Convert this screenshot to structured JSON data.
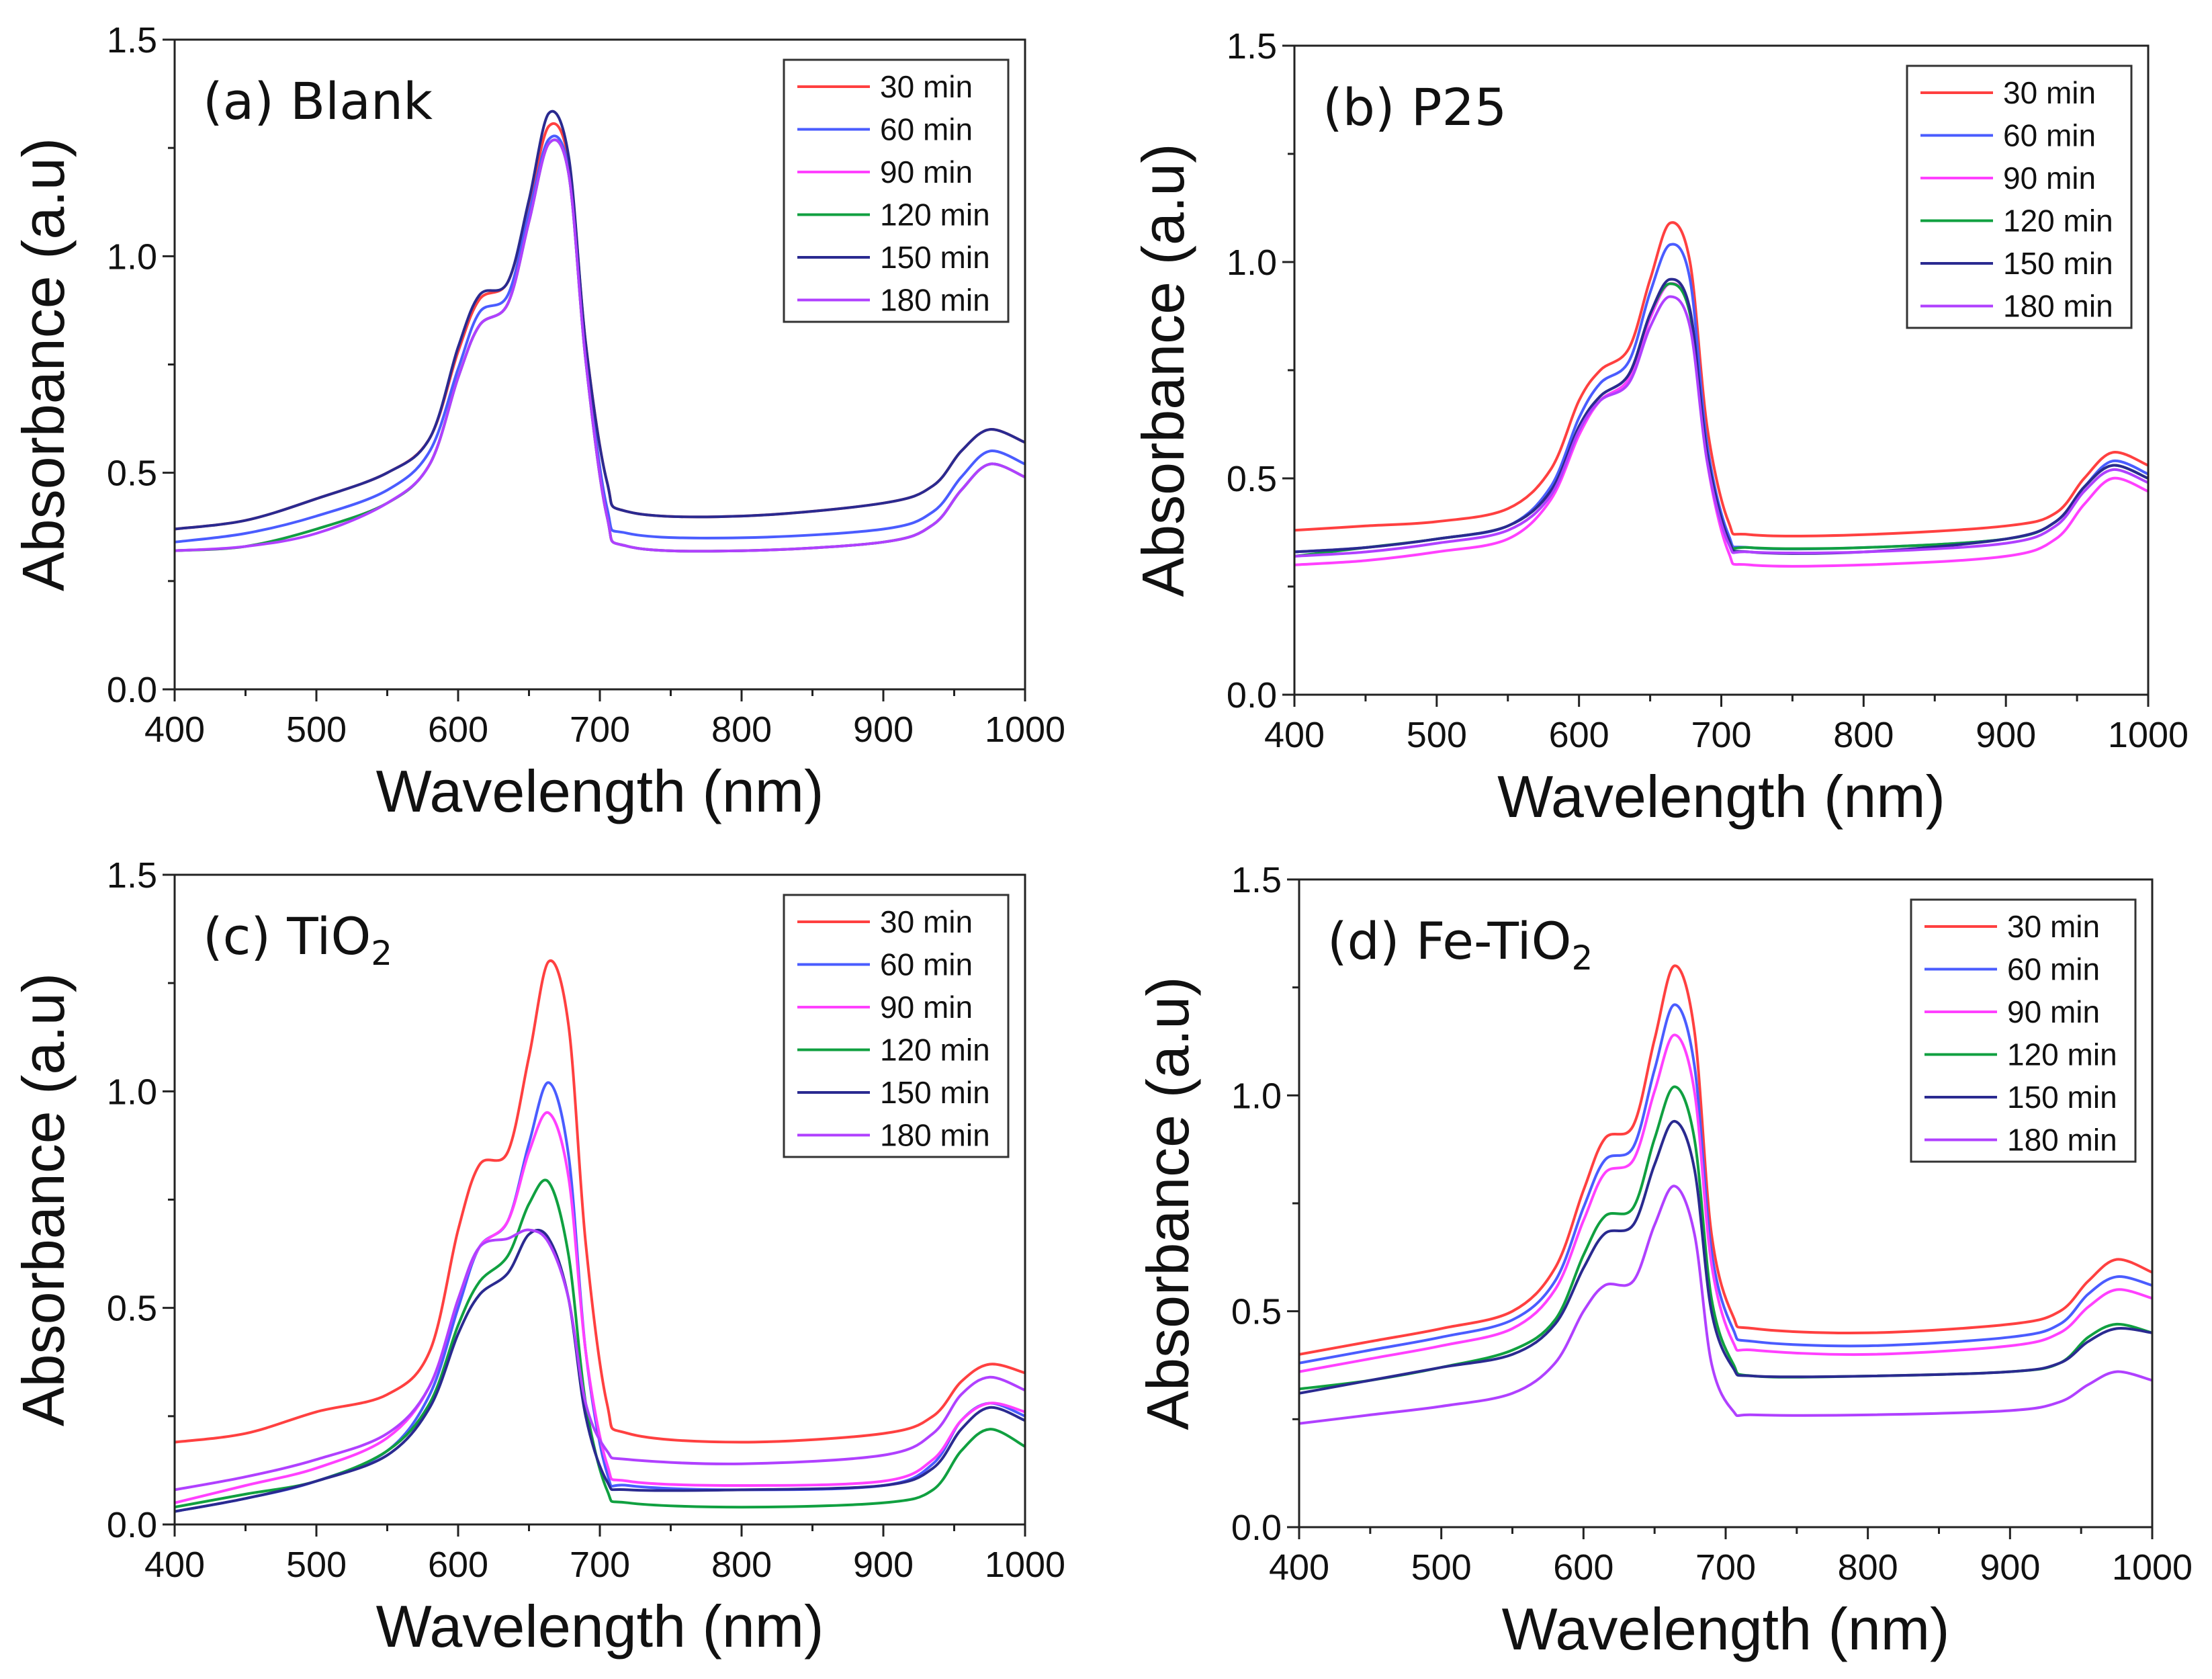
{
  "chart_data": [
    {
      "type": "line",
      "title": "(a) Blank",
      "title_main": "(a) Blank",
      "title_sub": "",
      "xlabel": "Wavelength (nm)",
      "ylabel": "Absorbance (a.u)",
      "xlim": [
        400,
        1000
      ],
      "ylim": [
        0,
        1.5
      ],
      "xticks": [
        "400",
        "500",
        "600",
        "700",
        "800",
        "900",
        "1000"
      ],
      "yticks": [
        "0.0",
        "0.5",
        "1.0",
        "1.5"
      ],
      "legend_position": "top-right",
      "grid": false,
      "x": [
        400,
        450,
        500,
        550,
        580,
        600,
        615,
        635,
        650,
        664,
        678,
        690,
        705,
        720,
        800,
        900,
        935,
        955,
        975,
        1000
      ],
      "series": [
        {
          "name": "30 min",
          "color": "#ff4040",
          "values": [
            0.37,
            0.39,
            0.44,
            0.5,
            0.58,
            0.78,
            0.9,
            0.94,
            1.12,
            1.3,
            1.22,
            0.8,
            0.48,
            0.41,
            0.4,
            0.43,
            0.47,
            0.55,
            0.6,
            0.57
          ]
        },
        {
          "name": "60 min",
          "color": "#4a5cff",
          "values": [
            0.34,
            0.36,
            0.4,
            0.46,
            0.55,
            0.74,
            0.87,
            0.91,
            1.1,
            1.27,
            1.2,
            0.78,
            0.42,
            0.36,
            0.35,
            0.37,
            0.41,
            0.49,
            0.55,
            0.52
          ]
        },
        {
          "name": "90 min",
          "color": "#ff40ff",
          "values": [
            0.32,
            0.33,
            0.37,
            0.43,
            0.52,
            0.72,
            0.84,
            0.89,
            1.08,
            1.26,
            1.19,
            0.76,
            0.4,
            0.33,
            0.32,
            0.34,
            0.38,
            0.46,
            0.52,
            0.49
          ]
        },
        {
          "name": "120 min",
          "color": "#10a040",
          "values": [
            0.32,
            0.33,
            0.37,
            0.43,
            0.52,
            0.72,
            0.84,
            0.89,
            1.08,
            1.26,
            1.19,
            0.76,
            0.4,
            0.33,
            0.32,
            0.34,
            0.38,
            0.46,
            0.52,
            0.49
          ]
        },
        {
          "name": "150 min",
          "color": "#2a2a90",
          "values": [
            0.37,
            0.39,
            0.44,
            0.5,
            0.58,
            0.79,
            0.91,
            0.94,
            1.13,
            1.33,
            1.23,
            0.8,
            0.48,
            0.41,
            0.4,
            0.43,
            0.47,
            0.55,
            0.6,
            0.57
          ]
        },
        {
          "name": "180 min",
          "color": "#b040ff",
          "values": [
            0.32,
            0.33,
            0.36,
            0.43,
            0.52,
            0.72,
            0.84,
            0.89,
            1.08,
            1.26,
            1.19,
            0.76,
            0.4,
            0.33,
            0.32,
            0.34,
            0.38,
            0.46,
            0.52,
            0.49
          ]
        }
      ]
    },
    {
      "type": "line",
      "title": "(b) P25",
      "title_main": "(b) P25",
      "title_sub": "",
      "xlabel": "Wavelength (nm)",
      "ylabel": "Absorbance (a.u)",
      "xlim": [
        400,
        1000
      ],
      "ylim": [
        0,
        1.5
      ],
      "xticks": [
        "400",
        "500",
        "600",
        "700",
        "800",
        "900",
        "1000"
      ],
      "yticks": [
        "0.0",
        "0.5",
        "1.0",
        "1.5"
      ],
      "legend_position": "top-right",
      "grid": false,
      "x": [
        400,
        450,
        500,
        550,
        580,
        600,
        615,
        635,
        650,
        664,
        678,
        690,
        705,
        720,
        800,
        900,
        935,
        955,
        975,
        1000
      ],
      "series": [
        {
          "name": "30 min",
          "color": "#ff4040",
          "values": [
            0.38,
            0.39,
            0.4,
            0.43,
            0.52,
            0.68,
            0.75,
            0.8,
            0.96,
            1.09,
            1.0,
            0.62,
            0.4,
            0.37,
            0.37,
            0.39,
            0.42,
            0.5,
            0.56,
            0.53
          ]
        },
        {
          "name": "60 min",
          "color": "#4a5cff",
          "values": [
            0.33,
            0.34,
            0.36,
            0.39,
            0.48,
            0.64,
            0.72,
            0.77,
            0.93,
            1.04,
            0.96,
            0.58,
            0.37,
            0.34,
            0.34,
            0.36,
            0.4,
            0.48,
            0.54,
            0.51
          ]
        },
        {
          "name": "90 min",
          "color": "#ff40ff",
          "values": [
            0.3,
            0.31,
            0.33,
            0.36,
            0.45,
            0.6,
            0.68,
            0.73,
            0.87,
            0.95,
            0.88,
            0.54,
            0.33,
            0.3,
            0.3,
            0.32,
            0.36,
            0.44,
            0.5,
            0.47
          ]
        },
        {
          "name": "120 min",
          "color": "#10a040",
          "values": [
            0.32,
            0.34,
            0.36,
            0.39,
            0.47,
            0.62,
            0.69,
            0.74,
            0.88,
            0.95,
            0.88,
            0.56,
            0.36,
            0.34,
            0.34,
            0.36,
            0.4,
            0.48,
            0.53,
            0.5
          ]
        },
        {
          "name": "150 min",
          "color": "#2a2a90",
          "values": [
            0.33,
            0.34,
            0.36,
            0.39,
            0.47,
            0.62,
            0.69,
            0.74,
            0.88,
            0.96,
            0.89,
            0.56,
            0.36,
            0.33,
            0.33,
            0.36,
            0.4,
            0.48,
            0.53,
            0.5
          ]
        },
        {
          "name": "180 min",
          "color": "#b040ff",
          "values": [
            0.32,
            0.33,
            0.35,
            0.38,
            0.46,
            0.61,
            0.68,
            0.72,
            0.85,
            0.92,
            0.85,
            0.54,
            0.35,
            0.33,
            0.33,
            0.35,
            0.39,
            0.47,
            0.52,
            0.49
          ]
        }
      ]
    },
    {
      "type": "line",
      "title": "(c) TiO2",
      "title_main": "(c) TiO",
      "title_sub": "2",
      "xlabel": "Wavelength (nm)",
      "ylabel": "Absorbance (a.u)",
      "xlim": [
        400,
        1000
      ],
      "ylim": [
        0,
        1.5
      ],
      "xticks": [
        "400",
        "500",
        "600",
        "700",
        "800",
        "900",
        "1000"
      ],
      "yticks": [
        "0.0",
        "0.5",
        "1.0",
        "1.5"
      ],
      "legend_position": "top-right",
      "grid": false,
      "x": [
        400,
        450,
        500,
        550,
        580,
        600,
        615,
        635,
        650,
        664,
        678,
        690,
        705,
        720,
        800,
        900,
        935,
        955,
        975,
        1000
      ],
      "series": [
        {
          "name": "30 min",
          "color": "#ff4040",
          "values": [
            0.19,
            0.21,
            0.26,
            0.3,
            0.4,
            0.68,
            0.83,
            0.86,
            1.08,
            1.3,
            1.15,
            0.65,
            0.28,
            0.21,
            0.19,
            0.21,
            0.25,
            0.33,
            0.37,
            0.35
          ]
        },
        {
          "name": "60 min",
          "color": "#4a5cff",
          "values": [
            0.03,
            0.06,
            0.1,
            0.17,
            0.3,
            0.5,
            0.64,
            0.7,
            0.88,
            1.02,
            0.85,
            0.4,
            0.12,
            0.09,
            0.08,
            0.09,
            0.14,
            0.24,
            0.28,
            0.25
          ]
        },
        {
          "name": "90 min",
          "color": "#ff40ff",
          "values": [
            0.05,
            0.09,
            0.13,
            0.2,
            0.32,
            0.52,
            0.64,
            0.7,
            0.86,
            0.95,
            0.8,
            0.4,
            0.14,
            0.1,
            0.09,
            0.1,
            0.15,
            0.24,
            0.28,
            0.26
          ]
        },
        {
          "name": "120 min",
          "color": "#10a040",
          "values": [
            0.04,
            0.07,
            0.1,
            0.17,
            0.28,
            0.46,
            0.56,
            0.62,
            0.74,
            0.79,
            0.62,
            0.28,
            0.08,
            0.05,
            0.04,
            0.05,
            0.08,
            0.17,
            0.22,
            0.18
          ]
        },
        {
          "name": "150 min",
          "color": "#2a2a90",
          "values": [
            0.03,
            0.06,
            0.1,
            0.16,
            0.27,
            0.44,
            0.53,
            0.58,
            0.67,
            0.66,
            0.52,
            0.25,
            0.1,
            0.08,
            0.08,
            0.09,
            0.13,
            0.22,
            0.27,
            0.24
          ]
        },
        {
          "name": "180 min",
          "color": "#b040ff",
          "values": [
            0.08,
            0.11,
            0.15,
            0.21,
            0.32,
            0.52,
            0.64,
            0.66,
            0.68,
            0.65,
            0.52,
            0.28,
            0.17,
            0.15,
            0.14,
            0.16,
            0.21,
            0.3,
            0.34,
            0.31
          ]
        }
      ]
    },
    {
      "type": "line",
      "title": "(d) Fe-TiO2",
      "title_main": "(d) Fe-TiO",
      "title_sub": "2",
      "xlabel": "Wavelength (nm)",
      "ylabel": "Absorbance (a.u)",
      "xlim": [
        400,
        1000
      ],
      "ylim": [
        0,
        1.5
      ],
      "xticks": [
        "400",
        "500",
        "600",
        "700",
        "800",
        "900",
        "1000"
      ],
      "yticks": [
        "0.0",
        "0.5",
        "1.0",
        "1.5"
      ],
      "legend_position": "top-right",
      "grid": false,
      "x": [
        400,
        450,
        500,
        550,
        580,
        600,
        615,
        635,
        650,
        664,
        678,
        690,
        705,
        720,
        800,
        900,
        935,
        955,
        975,
        1000
      ],
      "series": [
        {
          "name": "30 min",
          "color": "#ff4040",
          "values": [
            0.4,
            0.43,
            0.46,
            0.5,
            0.6,
            0.78,
            0.9,
            0.93,
            1.13,
            1.3,
            1.15,
            0.68,
            0.49,
            0.46,
            0.45,
            0.47,
            0.5,
            0.57,
            0.62,
            0.59
          ]
        },
        {
          "name": "60 min",
          "color": "#4a5cff",
          "values": [
            0.38,
            0.41,
            0.44,
            0.48,
            0.57,
            0.74,
            0.85,
            0.88,
            1.06,
            1.21,
            1.07,
            0.64,
            0.46,
            0.43,
            0.42,
            0.44,
            0.47,
            0.54,
            0.58,
            0.56
          ]
        },
        {
          "name": "90 min",
          "color": "#ff40ff",
          "values": [
            0.36,
            0.39,
            0.42,
            0.46,
            0.55,
            0.71,
            0.82,
            0.85,
            1.01,
            1.14,
            1.01,
            0.61,
            0.43,
            0.41,
            0.4,
            0.42,
            0.45,
            0.51,
            0.55,
            0.53
          ]
        },
        {
          "name": "120 min",
          "color": "#10a040",
          "values": [
            0.32,
            0.34,
            0.37,
            0.41,
            0.48,
            0.63,
            0.72,
            0.74,
            0.9,
            1.02,
            0.9,
            0.53,
            0.38,
            0.35,
            0.35,
            0.36,
            0.38,
            0.44,
            0.47,
            0.45
          ]
        },
        {
          "name": "150 min",
          "color": "#2a2a90",
          "values": [
            0.31,
            0.34,
            0.37,
            0.4,
            0.47,
            0.6,
            0.68,
            0.7,
            0.84,
            0.94,
            0.83,
            0.5,
            0.37,
            0.35,
            0.35,
            0.36,
            0.38,
            0.43,
            0.46,
            0.45
          ]
        },
        {
          "name": "180 min",
          "color": "#b040ff",
          "values": [
            0.24,
            0.26,
            0.28,
            0.31,
            0.38,
            0.5,
            0.56,
            0.57,
            0.7,
            0.79,
            0.68,
            0.38,
            0.27,
            0.26,
            0.26,
            0.27,
            0.29,
            0.33,
            0.36,
            0.34
          ]
        }
      ]
    }
  ]
}
